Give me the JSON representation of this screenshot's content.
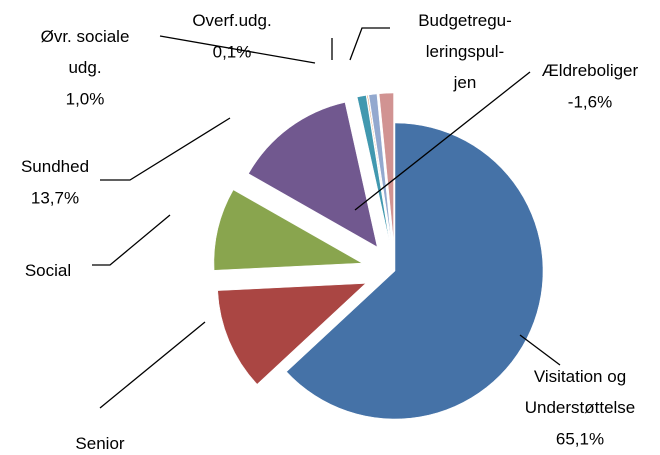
{
  "chart_data": {
    "type": "pie",
    "categories": [
      "Visitation og\nUnderstøttelse",
      "Senior",
      "Social",
      "Sundhed",
      "Øvr. sociale\nudg.",
      "Overf.udg.",
      "Budgetregu-\nleringspul-\njen",
      "Ældreboliger"
    ],
    "values": [
      65.1,
      11.5,
      9.3,
      13.7,
      1.0,
      0.1,
      0.9,
      -1.6
    ],
    "value_labels": [
      "65,1%",
      null,
      null,
      "13,7%",
      "1,0%",
      "0,1%",
      null,
      "-1,6%"
    ],
    "colors": [
      "#4572a7",
      "#aa4643",
      "#89a54e",
      "#71588f",
      "#4198af",
      "#db843d",
      "#93a9cf",
      "#d19392"
    ]
  }
}
